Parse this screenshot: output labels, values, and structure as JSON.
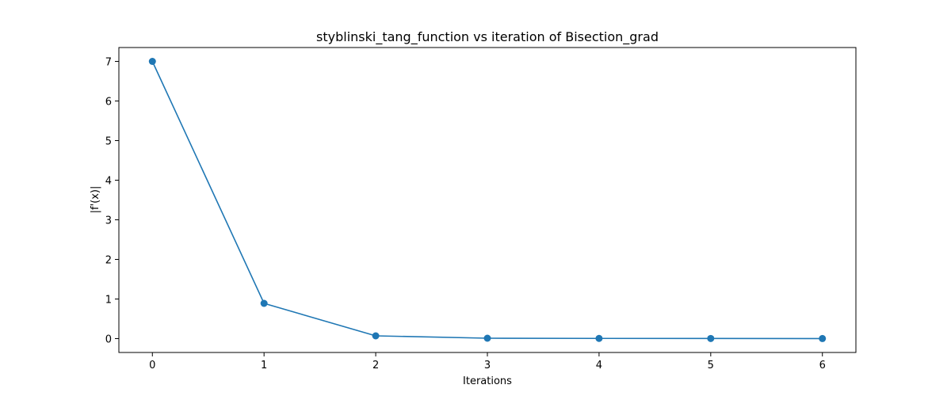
{
  "chart_data": {
    "type": "line",
    "title": "styblinski_tang_function vs iteration of Bisection_grad",
    "xlabel": "Iterations",
    "ylabel": "|f'(x)|",
    "x": [
      0,
      1,
      2,
      3,
      4,
      5,
      6
    ],
    "series": [
      {
        "values": [
          7.0,
          0.89,
          0.07,
          0.01,
          0.005,
          0.003,
          0.002
        ],
        "color": "#1f77b4",
        "marker": "circle"
      }
    ],
    "xlim": [
      -0.3,
      6.3
    ],
    "ylim": [
      -0.35,
      7.35
    ],
    "xticks": [
      "0",
      "1",
      "2",
      "3",
      "4",
      "5",
      "6"
    ],
    "yticks": [
      "0",
      "1",
      "2",
      "3",
      "4",
      "5",
      "6",
      "7"
    ],
    "grid": false,
    "legend": "none"
  }
}
